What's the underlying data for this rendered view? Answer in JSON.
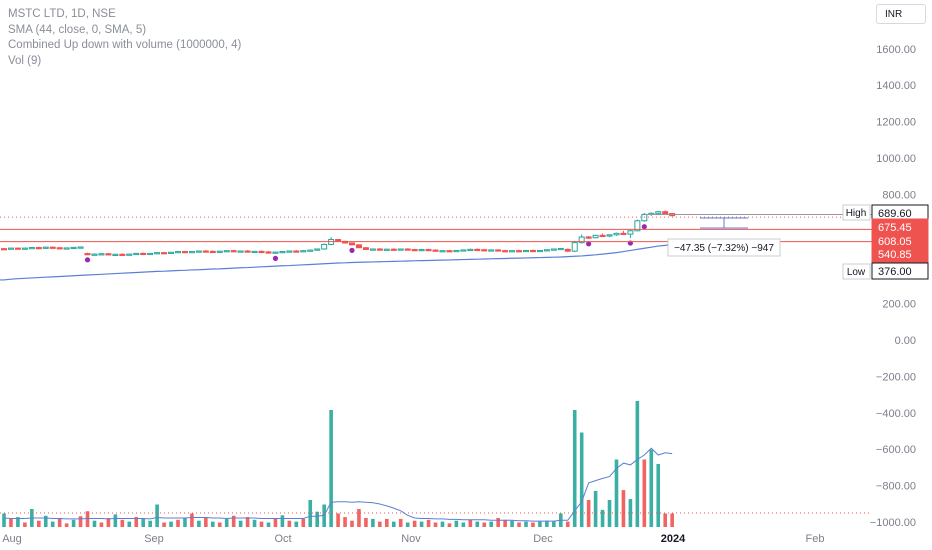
{
  "legend": {
    "title": "MSTC LTD, 1D, NSE",
    "sma": "SMA (44, close, 0, SMA, 5)",
    "combined": "Combined Up down with volume (1000000, 4)",
    "vol": "Vol (9)"
  },
  "currency": "INR",
  "colors": {
    "up": "#26a69a",
    "down": "#ef5350",
    "sma": "#5b7fd6",
    "signal": "#9c27b0",
    "axis_text": "#7b7f8a"
  },
  "chart_data": {
    "type": "candlestick",
    "symbol": "MSTC LTD",
    "interval": "1D",
    "exchange": "NSE",
    "y_ticks": [
      "1600.00",
      "1400.00",
      "1200.00",
      "1000.00",
      "800.00",
      "600.00",
      "400.00",
      "200.00",
      "0.00",
      "−200.00",
      "−400.00",
      "−600.00",
      "−800.00",
      "−1000.00"
    ],
    "ylim": [
      -1000,
      1650
    ],
    "x_ticks": [
      "Aug",
      "Sep",
      "Oct",
      "Nov",
      "Dec",
      "2024",
      "Feb"
    ],
    "price_labels": {
      "high_label": "High",
      "high_value": "689.60",
      "current_value": "675.45",
      "line1_value": "608.05",
      "line2_value": "540.85",
      "low_label": "Low",
      "low_value": "376.00"
    },
    "measure_label": "−47.35 (−7.32%) −947",
    "candles": [
      {
        "o": 502,
        "h": 505,
        "l": 497,
        "c": 500
      },
      {
        "o": 500,
        "h": 506,
        "l": 497,
        "c": 505
      },
      {
        "o": 505,
        "h": 508,
        "l": 501,
        "c": 502
      },
      {
        "o": 502,
        "h": 507,
        "l": 499,
        "c": 505
      },
      {
        "o": 505,
        "h": 510,
        "l": 502,
        "c": 508
      },
      {
        "o": 508,
        "h": 512,
        "l": 503,
        "c": 506
      },
      {
        "o": 506,
        "h": 512,
        "l": 503,
        "c": 510
      },
      {
        "o": 510,
        "h": 514,
        "l": 505,
        "c": 507
      },
      {
        "o": 507,
        "h": 510,
        "l": 500,
        "c": 503
      },
      {
        "o": 503,
        "h": 508,
        "l": 499,
        "c": 506
      },
      {
        "o": 506,
        "h": 512,
        "l": 503,
        "c": 509
      },
      {
        "o": 509,
        "h": 514,
        "l": 505,
        "c": 511
      },
      {
        "o": 475,
        "h": 480,
        "l": 468,
        "c": 470
      },
      {
        "o": 470,
        "h": 476,
        "l": 465,
        "c": 472
      },
      {
        "o": 472,
        "h": 478,
        "l": 468,
        "c": 474
      },
      {
        "o": 474,
        "h": 478,
        "l": 466,
        "c": 468
      },
      {
        "o": 468,
        "h": 474,
        "l": 464,
        "c": 471
      },
      {
        "o": 471,
        "h": 476,
        "l": 467,
        "c": 469
      },
      {
        "o": 469,
        "h": 475,
        "l": 466,
        "c": 472
      },
      {
        "o": 472,
        "h": 478,
        "l": 469,
        "c": 476
      },
      {
        "o": 476,
        "h": 480,
        "l": 470,
        "c": 473
      },
      {
        "o": 473,
        "h": 478,
        "l": 469,
        "c": 476
      },
      {
        "o": 476,
        "h": 482,
        "l": 473,
        "c": 480
      },
      {
        "o": 480,
        "h": 484,
        "l": 475,
        "c": 478
      },
      {
        "o": 478,
        "h": 484,
        "l": 474,
        "c": 482
      },
      {
        "o": 482,
        "h": 488,
        "l": 478,
        "c": 486
      },
      {
        "o": 486,
        "h": 490,
        "l": 480,
        "c": 483
      },
      {
        "o": 483,
        "h": 488,
        "l": 478,
        "c": 486
      },
      {
        "o": 486,
        "h": 492,
        "l": 482,
        "c": 489
      },
      {
        "o": 489,
        "h": 494,
        "l": 484,
        "c": 487
      },
      {
        "o": 487,
        "h": 492,
        "l": 481,
        "c": 484
      },
      {
        "o": 484,
        "h": 490,
        "l": 480,
        "c": 488
      },
      {
        "o": 488,
        "h": 494,
        "l": 484,
        "c": 491
      },
      {
        "o": 491,
        "h": 496,
        "l": 485,
        "c": 486
      },
      {
        "o": 486,
        "h": 491,
        "l": 481,
        "c": 489
      },
      {
        "o": 489,
        "h": 494,
        "l": 484,
        "c": 485
      },
      {
        "o": 485,
        "h": 490,
        "l": 480,
        "c": 487
      },
      {
        "o": 487,
        "h": 492,
        "l": 482,
        "c": 484
      },
      {
        "o": 484,
        "h": 489,
        "l": 478,
        "c": 481
      },
      {
        "o": 481,
        "h": 486,
        "l": 476,
        "c": 483
      },
      {
        "o": 483,
        "h": 489,
        "l": 478,
        "c": 486
      },
      {
        "o": 486,
        "h": 492,
        "l": 482,
        "c": 489
      },
      {
        "o": 489,
        "h": 494,
        "l": 484,
        "c": 486
      },
      {
        "o": 486,
        "h": 493,
        "l": 482,
        "c": 491
      },
      {
        "o": 491,
        "h": 497,
        "l": 487,
        "c": 494
      },
      {
        "o": 494,
        "h": 503,
        "l": 490,
        "c": 500
      },
      {
        "o": 500,
        "h": 530,
        "l": 496,
        "c": 525
      },
      {
        "o": 525,
        "h": 565,
        "l": 520,
        "c": 552
      },
      {
        "o": 552,
        "h": 555,
        "l": 538,
        "c": 542
      },
      {
        "o": 542,
        "h": 545,
        "l": 530,
        "c": 533
      },
      {
        "o": 533,
        "h": 536,
        "l": 520,
        "c": 523
      },
      {
        "o": 523,
        "h": 526,
        "l": 505,
        "c": 507
      },
      {
        "o": 507,
        "h": 511,
        "l": 494,
        "c": 497
      },
      {
        "o": 497,
        "h": 503,
        "l": 492,
        "c": 500
      },
      {
        "o": 500,
        "h": 505,
        "l": 494,
        "c": 496
      },
      {
        "o": 496,
        "h": 502,
        "l": 491,
        "c": 499
      },
      {
        "o": 499,
        "h": 504,
        "l": 494,
        "c": 497
      },
      {
        "o": 497,
        "h": 502,
        "l": 493,
        "c": 500
      },
      {
        "o": 500,
        "h": 504,
        "l": 495,
        "c": 497
      },
      {
        "o": 497,
        "h": 501,
        "l": 492,
        "c": 494
      },
      {
        "o": 494,
        "h": 499,
        "l": 490,
        "c": 497
      },
      {
        "o": 497,
        "h": 501,
        "l": 492,
        "c": 494
      },
      {
        "o": 494,
        "h": 498,
        "l": 487,
        "c": 489
      },
      {
        "o": 489,
        "h": 494,
        "l": 485,
        "c": 491
      },
      {
        "o": 491,
        "h": 495,
        "l": 486,
        "c": 488
      },
      {
        "o": 488,
        "h": 494,
        "l": 485,
        "c": 492
      },
      {
        "o": 492,
        "h": 497,
        "l": 488,
        "c": 495
      },
      {
        "o": 495,
        "h": 502,
        "l": 491,
        "c": 498
      },
      {
        "o": 498,
        "h": 503,
        "l": 493,
        "c": 496
      },
      {
        "o": 496,
        "h": 500,
        "l": 490,
        "c": 493
      },
      {
        "o": 493,
        "h": 498,
        "l": 489,
        "c": 495
      },
      {
        "o": 495,
        "h": 499,
        "l": 488,
        "c": 491
      },
      {
        "o": 491,
        "h": 496,
        "l": 486,
        "c": 488
      },
      {
        "o": 488,
        "h": 493,
        "l": 484,
        "c": 491
      },
      {
        "o": 491,
        "h": 496,
        "l": 487,
        "c": 489
      },
      {
        "o": 489,
        "h": 494,
        "l": 485,
        "c": 492
      },
      {
        "o": 492,
        "h": 497,
        "l": 488,
        "c": 489
      },
      {
        "o": 489,
        "h": 494,
        "l": 485,
        "c": 492
      },
      {
        "o": 492,
        "h": 498,
        "l": 489,
        "c": 496
      },
      {
        "o": 496,
        "h": 503,
        "l": 492,
        "c": 500
      },
      {
        "o": 500,
        "h": 506,
        "l": 496,
        "c": 503
      },
      {
        "o": 498,
        "h": 503,
        "l": 484,
        "c": 488
      },
      {
        "o": 488,
        "h": 545,
        "l": 484,
        "c": 535
      },
      {
        "o": 535,
        "h": 580,
        "l": 530,
        "c": 566
      },
      {
        "o": 566,
        "h": 572,
        "l": 556,
        "c": 562
      },
      {
        "o": 562,
        "h": 578,
        "l": 558,
        "c": 575
      },
      {
        "o": 575,
        "h": 585,
        "l": 568,
        "c": 572
      },
      {
        "o": 572,
        "h": 580,
        "l": 565,
        "c": 578
      },
      {
        "o": 578,
        "h": 590,
        "l": 572,
        "c": 586
      },
      {
        "o": 586,
        "h": 600,
        "l": 580,
        "c": 582
      },
      {
        "o": 582,
        "h": 605,
        "l": 560,
        "c": 600
      },
      {
        "o": 600,
        "h": 662,
        "l": 598,
        "c": 655
      },
      {
        "o": 655,
        "h": 698,
        "l": 650,
        "c": 690
      },
      {
        "o": 690,
        "h": 702,
        "l": 682,
        "c": 696
      },
      {
        "o": 696,
        "h": 708,
        "l": 686,
        "c": 705
      },
      {
        "o": 705,
        "h": 712,
        "l": 690,
        "c": 695
      },
      {
        "o": 695,
        "h": 698,
        "l": 680,
        "c": 683
      }
    ],
    "sma_series": [
      330,
      334,
      337,
      339,
      341,
      343,
      345,
      347,
      349,
      351,
      353,
      355,
      357,
      359,
      361,
      363,
      365,
      367,
      369,
      371,
      373,
      375,
      377,
      378,
      380,
      382,
      383,
      385,
      386,
      388,
      390,
      391,
      393,
      395,
      397,
      398,
      400,
      402,
      404,
      406,
      408,
      409,
      411,
      413,
      415,
      417,
      419,
      421,
      423,
      424,
      426,
      427,
      428,
      429,
      430,
      431,
      432,
      433,
      434,
      435,
      436,
      437,
      438,
      439,
      440,
      441,
      442,
      443,
      444,
      445,
      446,
      447,
      448,
      449,
      450,
      451,
      452,
      453,
      454,
      455,
      456,
      458,
      460,
      462,
      465,
      468,
      472,
      476,
      480,
      486,
      492,
      498,
      504,
      510,
      516,
      520,
      524
    ],
    "volume_bars": [
      {
        "v": 30,
        "d": 0
      },
      {
        "v": 18,
        "d": 1
      },
      {
        "v": 22,
        "d": 0
      },
      {
        "v": 10,
        "d": 1
      },
      {
        "v": 40,
        "d": 0
      },
      {
        "v": 14,
        "d": 1
      },
      {
        "v": 25,
        "d": 0
      },
      {
        "v": 12,
        "d": 0
      },
      {
        "v": 20,
        "d": 1
      },
      {
        "v": 8,
        "d": 1
      },
      {
        "v": 16,
        "d": 0
      },
      {
        "v": 24,
        "d": 1
      },
      {
        "v": 35,
        "d": 1
      },
      {
        "v": 14,
        "d": 0
      },
      {
        "v": 10,
        "d": 1
      },
      {
        "v": 20,
        "d": 1
      },
      {
        "v": 28,
        "d": 0
      },
      {
        "v": 16,
        "d": 1
      },
      {
        "v": 12,
        "d": 0
      },
      {
        "v": 22,
        "d": 1
      },
      {
        "v": 18,
        "d": 0
      },
      {
        "v": 14,
        "d": 0
      },
      {
        "v": 50,
        "d": 0
      },
      {
        "v": 10,
        "d": 1
      },
      {
        "v": 12,
        "d": 0
      },
      {
        "v": 16,
        "d": 1
      },
      {
        "v": 20,
        "d": 0
      },
      {
        "v": 30,
        "d": 1
      },
      {
        "v": 14,
        "d": 0
      },
      {
        "v": 20,
        "d": 1
      },
      {
        "v": 12,
        "d": 0
      },
      {
        "v": 10,
        "d": 1
      },
      {
        "v": 18,
        "d": 0
      },
      {
        "v": 25,
        "d": 1
      },
      {
        "v": 14,
        "d": 0
      },
      {
        "v": 22,
        "d": 1
      },
      {
        "v": 16,
        "d": 0
      },
      {
        "v": 12,
        "d": 1
      },
      {
        "v": 10,
        "d": 0
      },
      {
        "v": 20,
        "d": 1
      },
      {
        "v": 26,
        "d": 0
      },
      {
        "v": 14,
        "d": 1
      },
      {
        "v": 12,
        "d": 0
      },
      {
        "v": 18,
        "d": 1
      },
      {
        "v": 60,
        "d": 0
      },
      {
        "v": 34,
        "d": 0
      },
      {
        "v": 50,
        "d": 0
      },
      {
        "v": 260,
        "d": 0
      },
      {
        "v": 30,
        "d": 1
      },
      {
        "v": 22,
        "d": 1
      },
      {
        "v": 14,
        "d": 1
      },
      {
        "v": 40,
        "d": 1
      },
      {
        "v": 20,
        "d": 1
      },
      {
        "v": 18,
        "d": 0
      },
      {
        "v": 12,
        "d": 1
      },
      {
        "v": 18,
        "d": 1
      },
      {
        "v": 12,
        "d": 0
      },
      {
        "v": 18,
        "d": 1
      },
      {
        "v": 10,
        "d": 0
      },
      {
        "v": 14,
        "d": 1
      },
      {
        "v": 12,
        "d": 0
      },
      {
        "v": 16,
        "d": 1
      },
      {
        "v": 10,
        "d": 1
      },
      {
        "v": 12,
        "d": 0
      },
      {
        "v": 8,
        "d": 1
      },
      {
        "v": 14,
        "d": 0
      },
      {
        "v": 10,
        "d": 0
      },
      {
        "v": 16,
        "d": 1
      },
      {
        "v": 12,
        "d": 0
      },
      {
        "v": 10,
        "d": 1
      },
      {
        "v": 12,
        "d": 0
      },
      {
        "v": 20,
        "d": 1
      },
      {
        "v": 16,
        "d": 1
      },
      {
        "v": 14,
        "d": 0
      },
      {
        "v": 10,
        "d": 1
      },
      {
        "v": 12,
        "d": 0
      },
      {
        "v": 10,
        "d": 1
      },
      {
        "v": 12,
        "d": 0
      },
      {
        "v": 14,
        "d": 0
      },
      {
        "v": 12,
        "d": 0
      },
      {
        "v": 30,
        "d": 0
      },
      {
        "v": 12,
        "d": 1
      },
      {
        "v": 260,
        "d": 0
      },
      {
        "v": 210,
        "d": 0
      },
      {
        "v": 60,
        "d": 1
      },
      {
        "v": 80,
        "d": 0
      },
      {
        "v": 38,
        "d": 0
      },
      {
        "v": 60,
        "d": 0
      },
      {
        "v": 150,
        "d": 0
      },
      {
        "v": 82,
        "d": 1
      },
      {
        "v": 62,
        "d": 0
      },
      {
        "v": 280,
        "d": 0
      },
      {
        "v": 150,
        "d": 1
      },
      {
        "v": 172,
        "d": 0
      },
      {
        "v": 140,
        "d": 0
      },
      {
        "v": 30,
        "d": 1
      },
      {
        "v": 30,
        "d": 1
      }
    ],
    "volume_ma": [
      20,
      19,
      19,
      19,
      20,
      20,
      20,
      19,
      19,
      18,
      18,
      18,
      19,
      19,
      19,
      18,
      19,
      19,
      19,
      19,
      19,
      18,
      21,
      20,
      20,
      20,
      20,
      21,
      21,
      21,
      20,
      20,
      19,
      20,
      20,
      20,
      20,
      19,
      19,
      19,
      19,
      19,
      19,
      19,
      24,
      24,
      26,
      55,
      56,
      56,
      55,
      56,
      55,
      54,
      51,
      47,
      42,
      36,
      26,
      20,
      19,
      19,
      18,
      18,
      17,
      17,
      16,
      16,
      16,
      16,
      15,
      15,
      15,
      15,
      14,
      14,
      13,
      13,
      13,
      13,
      15,
      15,
      36,
      56,
      98,
      103,
      108,
      112,
      130,
      142,
      138,
      150,
      160,
      175,
      160,
      165,
      163
    ]
  }
}
